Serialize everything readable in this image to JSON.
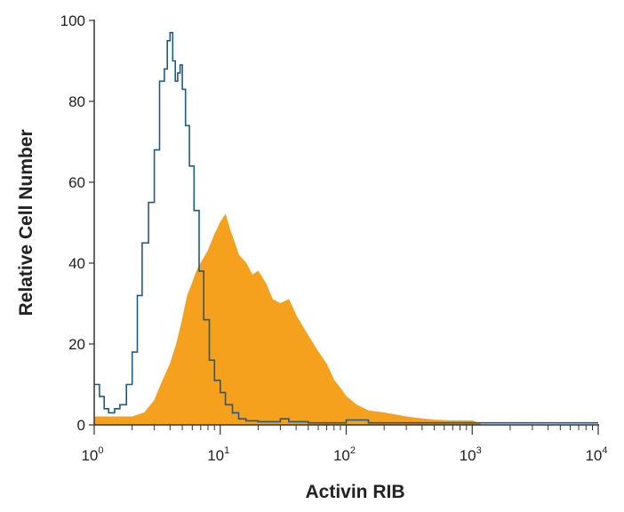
{
  "chart_data": {
    "type": "histogram",
    "title": "",
    "xlabel": "Activin RIB",
    "ylabel": "Relative Cell Number",
    "x_scale": "log",
    "xlim": [
      1,
      10000
    ],
    "ylim": [
      0,
      100
    ],
    "x_ticks": [
      {
        "base": "10",
        "exp": "0",
        "value": 1
      },
      {
        "base": "10",
        "exp": "1",
        "value": 10
      },
      {
        "base": "10",
        "exp": "2",
        "value": 100
      },
      {
        "base": "10",
        "exp": "3",
        "value": 1000
      },
      {
        "base": "10",
        "exp": "4",
        "value": 10000
      }
    ],
    "y_ticks": [
      "0",
      "20",
      "40",
      "60",
      "80",
      "100"
    ],
    "grid": false,
    "legend": "none",
    "series": [
      {
        "style": "outline",
        "color": "#1f5a85",
        "points": [
          [
            1.0,
            10
          ],
          [
            1.1,
            7
          ],
          [
            1.2,
            4
          ],
          [
            1.3,
            3
          ],
          [
            1.45,
            4
          ],
          [
            1.6,
            5
          ],
          [
            1.8,
            10
          ],
          [
            2.0,
            18
          ],
          [
            2.2,
            32
          ],
          [
            2.4,
            45
          ],
          [
            2.7,
            55
          ],
          [
            3.0,
            68
          ],
          [
            3.3,
            85
          ],
          [
            3.6,
            88
          ],
          [
            3.8,
            95
          ],
          [
            4.0,
            97
          ],
          [
            4.2,
            90
          ],
          [
            4.4,
            85
          ],
          [
            4.6,
            87
          ],
          [
            4.8,
            89
          ],
          [
            5.0,
            83
          ],
          [
            5.3,
            74
          ],
          [
            5.7,
            64
          ],
          [
            6.2,
            53
          ],
          [
            6.8,
            38
          ],
          [
            7.4,
            26
          ],
          [
            8.2,
            16
          ],
          [
            9.0,
            11
          ],
          [
            10.0,
            8
          ],
          [
            11.0,
            5
          ],
          [
            12.5,
            3
          ],
          [
            14.0,
            1.5
          ],
          [
            16.0,
            1
          ],
          [
            20.0,
            0.8
          ],
          [
            25.0,
            0.8
          ],
          [
            30.0,
            1.5
          ],
          [
            35.0,
            0.8
          ],
          [
            50.0,
            0.5
          ],
          [
            80.0,
            0.5
          ],
          [
            100.0,
            1.2
          ],
          [
            150.0,
            0.5
          ],
          [
            300.0,
            0.5
          ],
          [
            1000.0,
            0.5
          ],
          [
            10000.0,
            0.5
          ]
        ]
      },
      {
        "style": "filled",
        "color": "#f5a11e",
        "points": [
          [
            1.0,
            2
          ],
          [
            1.5,
            2
          ],
          [
            2.0,
            2
          ],
          [
            2.5,
            3
          ],
          [
            3.0,
            6
          ],
          [
            3.5,
            11
          ],
          [
            4.0,
            15
          ],
          [
            4.5,
            20
          ],
          [
            5.0,
            26
          ],
          [
            5.5,
            32
          ],
          [
            6.0,
            35
          ],
          [
            6.5,
            38
          ],
          [
            7.0,
            40
          ],
          [
            8.0,
            43
          ],
          [
            9.0,
            47
          ],
          [
            10.0,
            50
          ],
          [
            11.0,
            52
          ],
          [
            12.0,
            48
          ],
          [
            13.0,
            45
          ],
          [
            14.0,
            42
          ],
          [
            16.0,
            40
          ],
          [
            18.0,
            37
          ],
          [
            20.0,
            38
          ],
          [
            23.0,
            35
          ],
          [
            26.0,
            31
          ],
          [
            30.0,
            30
          ],
          [
            35.0,
            31
          ],
          [
            40.0,
            27
          ],
          [
            50.0,
            22
          ],
          [
            60.0,
            18
          ],
          [
            70.0,
            15
          ],
          [
            80.0,
            11
          ],
          [
            90.0,
            9
          ],
          [
            100.0,
            7
          ],
          [
            120.0,
            5
          ],
          [
            150.0,
            3.5
          ],
          [
            200.0,
            3
          ],
          [
            300.0,
            2
          ],
          [
            400.0,
            1.5
          ],
          [
            500.0,
            1.2
          ],
          [
            700.0,
            1
          ],
          [
            1000.0,
            1
          ],
          [
            1200.0,
            0
          ]
        ]
      }
    ]
  }
}
